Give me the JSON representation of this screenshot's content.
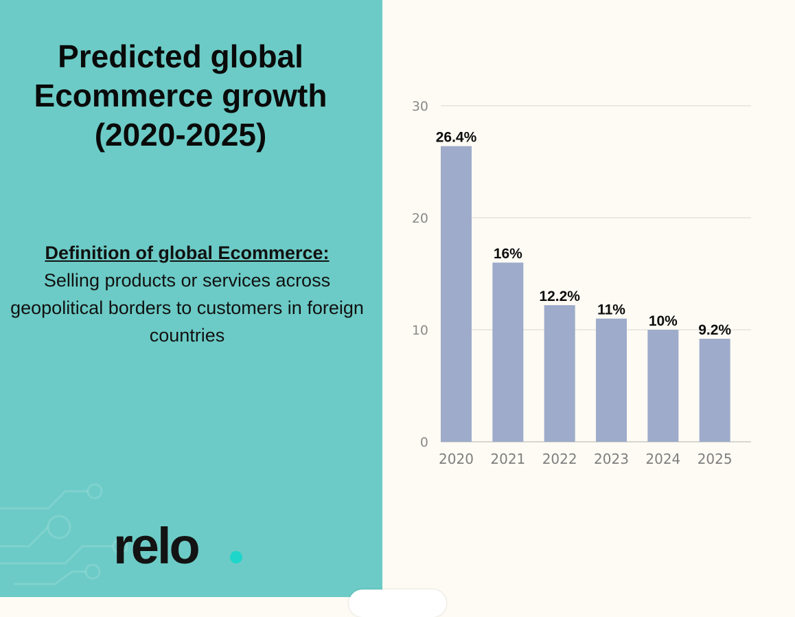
{
  "title_lines": [
    "Predicted global",
    "Ecommerce growth",
    "(2020-2025)"
  ],
  "definition": {
    "heading": "Definition of global Ecommerce:",
    "body": "Selling products or services across geopolitical borders to customers in foreign countries"
  },
  "logo": {
    "text": "relo",
    "dot_color": "#1ed6c9"
  },
  "colors": {
    "left_bg": "#6ccbc6",
    "right_bg": "#fdfbf4",
    "bar": "#9eabca",
    "grid": "#e3e3df"
  },
  "chart_data": {
    "type": "bar",
    "title": "Predicted global Ecommerce growth (2020-2025)",
    "categories": [
      "2020",
      "2021",
      "2022",
      "2023",
      "2024",
      "2025"
    ],
    "values": [
      26.4,
      16,
      12.2,
      11,
      10,
      9.2
    ],
    "data_labels": [
      "26.4%",
      "16%",
      "12.2%",
      "11%",
      "10%",
      "9.2%"
    ],
    "ylim": [
      0,
      30
    ],
    "yticks": [
      0,
      10,
      20,
      30
    ],
    "xlabel": "",
    "ylabel": "",
    "grid": true
  }
}
